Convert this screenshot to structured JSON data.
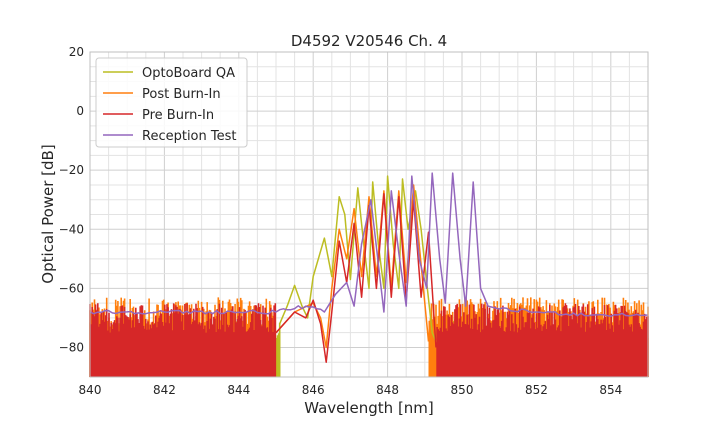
{
  "chart_data": {
    "type": "line",
    "title": "D4592 V20546 Ch. 4",
    "xlabel": "Wavelength [nm]",
    "ylabel": "Optical Power [dB]",
    "xlim": [
      840,
      855
    ],
    "ylim": [
      -90,
      20
    ],
    "xticks": [
      "840",
      "842",
      "844",
      "846",
      "848",
      "850",
      "852",
      "854"
    ],
    "yticks": [
      "20",
      "0",
      "−20",
      "−40",
      "−60",
      "−80"
    ],
    "grid": true,
    "legend_position": "top-left",
    "series": [
      {
        "name": "OptoBoard QA",
        "color": "#bcbd22",
        "noise_floor_left": -78,
        "noise_floor_right": -78,
        "cutoff": [
          845.1,
          849.3
        ],
        "points": [
          [
            845.1,
            -72
          ],
          [
            845.3,
            -66
          ],
          [
            845.5,
            -59
          ],
          [
            845.7,
            -66
          ],
          [
            845.85,
            -70
          ],
          [
            846.0,
            -56
          ],
          [
            846.3,
            -43
          ],
          [
            846.5,
            -56
          ],
          [
            846.7,
            -29
          ],
          [
            846.85,
            -35
          ],
          [
            847.0,
            -57
          ],
          [
            847.2,
            -26
          ],
          [
            847.35,
            -44
          ],
          [
            847.5,
            -60
          ],
          [
            847.6,
            -24
          ],
          [
            847.75,
            -45
          ],
          [
            847.9,
            -60
          ],
          [
            848.0,
            -22
          ],
          [
            848.15,
            -45
          ],
          [
            848.3,
            -60
          ],
          [
            848.4,
            -23
          ],
          [
            848.55,
            -40
          ],
          [
            848.75,
            -27
          ],
          [
            848.9,
            -40
          ],
          [
            849.05,
            -58
          ],
          [
            849.2,
            -75
          ],
          [
            849.3,
            -78
          ]
        ]
      },
      {
        "name": "Post Burn-In",
        "color": "#ff7f0e",
        "noise_floor_left": -70,
        "noise_floor_right": -70,
        "cutoff": [
          845.0,
          849.1
        ],
        "points": [
          [
            845.0,
            -75
          ],
          [
            845.5,
            -68
          ],
          [
            846.0,
            -65
          ],
          [
            846.2,
            -70
          ],
          [
            846.35,
            -80
          ],
          [
            846.5,
            -60
          ],
          [
            846.7,
            -40
          ],
          [
            846.9,
            -50
          ],
          [
            847.1,
            -33
          ],
          [
            847.3,
            -56
          ],
          [
            847.5,
            -29
          ],
          [
            847.7,
            -56
          ],
          [
            847.9,
            -27
          ],
          [
            848.1,
            -60
          ],
          [
            848.3,
            -27
          ],
          [
            848.5,
            -58
          ],
          [
            848.7,
            -25
          ],
          [
            848.9,
            -52
          ],
          [
            849.1,
            -78
          ]
        ]
      },
      {
        "name": "Pre Burn-In",
        "color": "#d62728",
        "noise_floor_left": -72,
        "noise_floor_right": -72,
        "cutoff": [
          845.0,
          849.3
        ],
        "points": [
          [
            845.0,
            -75
          ],
          [
            845.5,
            -68
          ],
          [
            845.8,
            -70
          ],
          [
            846.0,
            -64
          ],
          [
            846.2,
            -72
          ],
          [
            846.35,
            -85
          ],
          [
            846.5,
            -68
          ],
          [
            846.7,
            -44
          ],
          [
            846.9,
            -58
          ],
          [
            847.1,
            -38
          ],
          [
            847.3,
            -63
          ],
          [
            847.5,
            -32
          ],
          [
            847.7,
            -60
          ],
          [
            847.9,
            -28
          ],
          [
            848.1,
            -63
          ],
          [
            848.3,
            -29
          ],
          [
            848.5,
            -64
          ],
          [
            848.7,
            -30
          ],
          [
            848.9,
            -63
          ],
          [
            849.1,
            -41
          ],
          [
            849.3,
            -80
          ]
        ]
      },
      {
        "name": "Reception Test",
        "color": "#9467bd",
        "baseline": -68,
        "points": [
          [
            840,
            -68
          ],
          [
            845,
            -68
          ],
          [
            845.8,
            -66
          ],
          [
            846.3,
            -68
          ],
          [
            846.6,
            -62
          ],
          [
            846.9,
            -58
          ],
          [
            847.1,
            -66
          ],
          [
            847.3,
            -45
          ],
          [
            847.55,
            -30
          ],
          [
            847.7,
            -46
          ],
          [
            847.9,
            -68
          ],
          [
            848.1,
            -27
          ],
          [
            848.3,
            -48
          ],
          [
            848.5,
            -66
          ],
          [
            848.65,
            -22
          ],
          [
            848.85,
            -50
          ],
          [
            849.05,
            -60
          ],
          [
            849.2,
            -21
          ],
          [
            849.4,
            -50
          ],
          [
            849.55,
            -65
          ],
          [
            849.75,
            -21
          ],
          [
            849.95,
            -50
          ],
          [
            850.1,
            -66
          ],
          [
            850.3,
            -24
          ],
          [
            850.5,
            -60
          ],
          [
            850.7,
            -66
          ],
          [
            851.0,
            -67
          ],
          [
            852.0,
            -68
          ],
          [
            853.5,
            -69
          ],
          [
            855,
            -69
          ]
        ]
      }
    ]
  }
}
